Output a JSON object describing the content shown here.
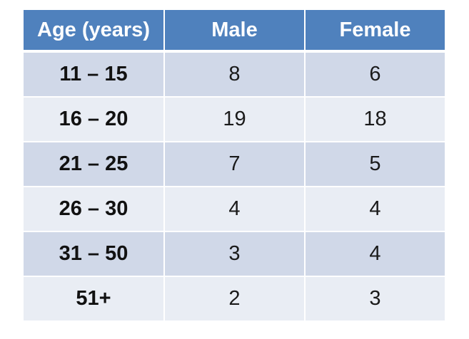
{
  "chart_data": {
    "type": "table",
    "columns": [
      "Age (years)",
      "Male",
      "Female"
    ],
    "rows": [
      {
        "age": "11 – 15",
        "male": "8",
        "female": "6"
      },
      {
        "age": "16 – 20",
        "male": "19",
        "female": "18"
      },
      {
        "age": "21 – 25",
        "male": "7",
        "female": "5"
      },
      {
        "age": "26 – 30",
        "male": "4",
        "female": "4"
      },
      {
        "age": "31 – 50",
        "male": "3",
        "female": "4"
      },
      {
        "age": "51+",
        "male": "2",
        "female": "3"
      }
    ],
    "colors": {
      "header_bg": "#4f81bd",
      "header_text": "#ffffff",
      "row_dark": "#d0d8e8",
      "row_light": "#e9edf4"
    }
  }
}
